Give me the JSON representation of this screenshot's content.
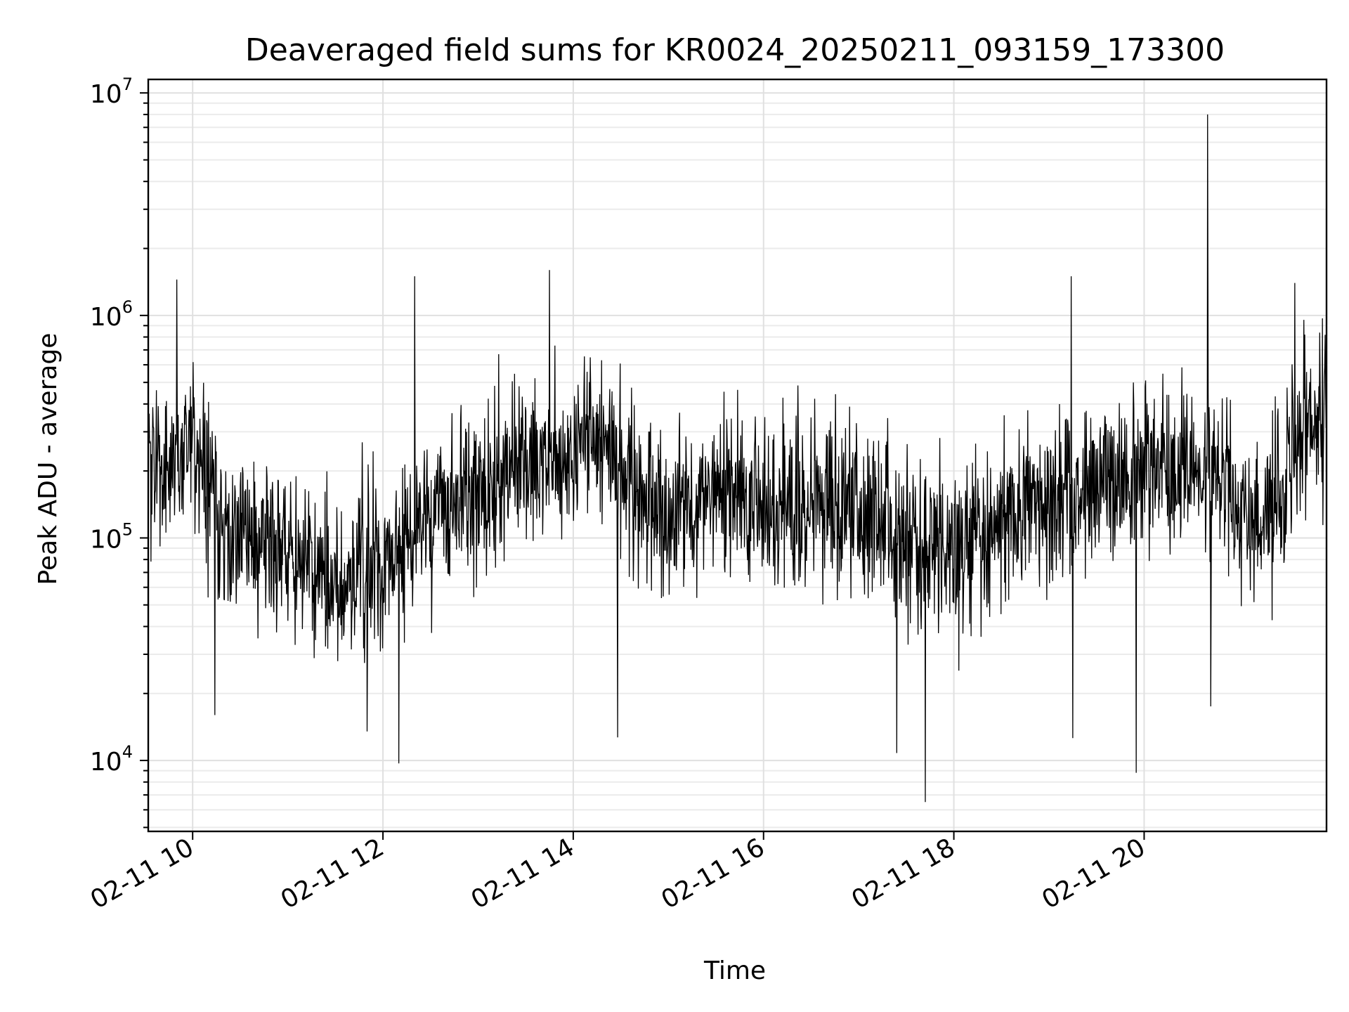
{
  "chart_data": {
    "type": "line",
    "title": "Deaveraged field sums for KR0024_20250211_093159_173300",
    "xlabel": "Time",
    "ylabel": "Peak ADU - average",
    "x_axis_type": "datetime",
    "x_range": [
      "2025-02-11T09:32:00",
      "2025-02-11T21:55:00"
    ],
    "x_tick_labels": [
      "02-11 10",
      "02-11 12",
      "02-11 14",
      "02-11 16",
      "02-11 18",
      "02-11 20"
    ],
    "y_scale": "log",
    "ylim": [
      4800,
      11500000
    ],
    "y_tick_labels": [
      {
        "base": "10",
        "exp": "4",
        "value": 10000
      },
      {
        "base": "10",
        "exp": "5",
        "value": 100000
      },
      {
        "base": "10",
        "exp": "6",
        "value": 1000000
      },
      {
        "base": "10",
        "exp": "7",
        "value": 10000000
      }
    ],
    "grid": true,
    "series_color": "#000000",
    "series": [
      {
        "name": "",
        "trend": [
          {
            "x": "2025-02-11T09:32:00",
            "y": 250000
          },
          {
            "x": "2025-02-11T09:45:00",
            "y": 200000
          },
          {
            "x": "2025-02-11T10:00:00",
            "y": 230000
          },
          {
            "x": "2025-02-11T10:15:00",
            "y": 120000
          },
          {
            "x": "2025-02-11T10:45:00",
            "y": 95000
          },
          {
            "x": "2025-02-11T11:15:00",
            "y": 80000
          },
          {
            "x": "2025-02-11T11:40:00",
            "y": 65000
          },
          {
            "x": "2025-02-11T12:10:00",
            "y": 80000
          },
          {
            "x": "2025-02-11T12:30:00",
            "y": 130000
          },
          {
            "x": "2025-02-11T13:00:00",
            "y": 170000
          },
          {
            "x": "2025-02-11T13:30:00",
            "y": 210000
          },
          {
            "x": "2025-02-11T14:00:00",
            "y": 250000
          },
          {
            "x": "2025-02-11T14:20:00",
            "y": 280000
          },
          {
            "x": "2025-02-11T14:45:00",
            "y": 150000
          },
          {
            "x": "2025-02-11T15:15:00",
            "y": 140000
          },
          {
            "x": "2025-02-11T15:45:00",
            "y": 160000
          },
          {
            "x": "2025-02-11T16:15:00",
            "y": 130000
          },
          {
            "x": "2025-02-11T16:40:00",
            "y": 150000
          },
          {
            "x": "2025-02-11T17:00:00",
            "y": 130000
          },
          {
            "x": "2025-02-11T17:30:00",
            "y": 100000
          },
          {
            "x": "2025-02-11T18:00:00",
            "y": 90000
          },
          {
            "x": "2025-02-11T18:30:00",
            "y": 120000
          },
          {
            "x": "2025-02-11T19:00:00",
            "y": 150000
          },
          {
            "x": "2025-02-11T19:30:00",
            "y": 180000
          },
          {
            "x": "2025-02-11T20:00:00",
            "y": 200000
          },
          {
            "x": "2025-02-11T20:30:00",
            "y": 210000
          },
          {
            "x": "2025-02-11T20:50:00",
            "y": 200000
          },
          {
            "x": "2025-02-11T21:00:00",
            "y": 110000
          },
          {
            "x": "2025-02-11T21:20:00",
            "y": 130000
          },
          {
            "x": "2025-02-11T21:40:00",
            "y": 300000
          },
          {
            "x": "2025-02-11T21:55:00",
            "y": 420000
          }
        ],
        "extremes": [
          {
            "x": "2025-02-11T09:50:00",
            "y": 1450000
          },
          {
            "x": "2025-02-11T10:14:00",
            "y": 16000
          },
          {
            "x": "2025-02-11T11:50:00",
            "y": 13500
          },
          {
            "x": "2025-02-11T12:10:00",
            "y": 9700
          },
          {
            "x": "2025-02-11T12:20:00",
            "y": 1500000
          },
          {
            "x": "2025-02-11T13:45:00",
            "y": 1600000
          },
          {
            "x": "2025-02-11T14:28:00",
            "y": 12700
          },
          {
            "x": "2025-02-11T17:24:00",
            "y": 10800
          },
          {
            "x": "2025-02-11T17:42:00",
            "y": 6500
          },
          {
            "x": "2025-02-11T19:14:00",
            "y": 1500000
          },
          {
            "x": "2025-02-11T19:15:00",
            "y": 12600
          },
          {
            "x": "2025-02-11T19:55:00",
            "y": 8800
          },
          {
            "x": "2025-02-11T20:40:00",
            "y": 8000000
          },
          {
            "x": "2025-02-11T20:42:00",
            "y": 17500
          },
          {
            "x": "2025-02-11T21:35:00",
            "y": 1400000
          }
        ]
      }
    ]
  }
}
